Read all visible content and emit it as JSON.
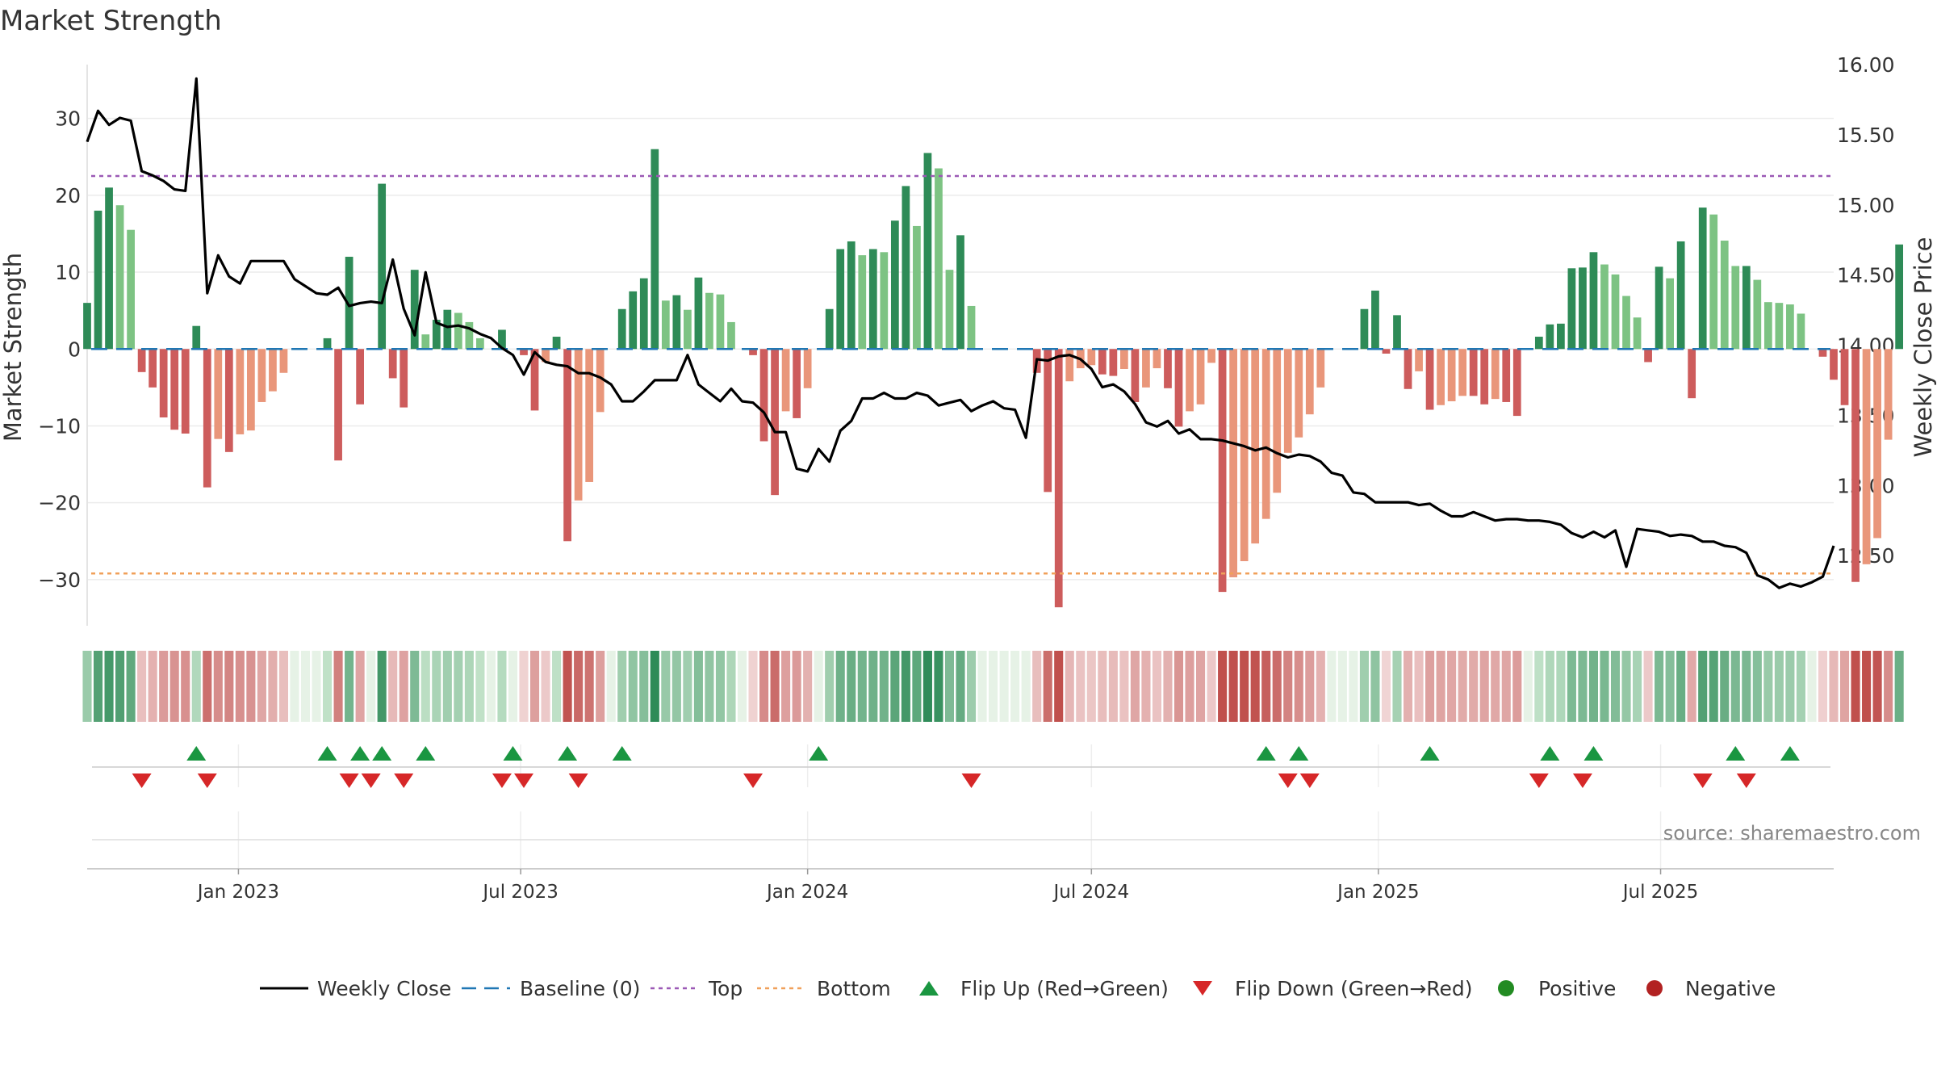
{
  "colors": {
    "up_dark": "#2e8b57",
    "up_light": "#7dc383",
    "down_dark": "#cd5c5c",
    "down_light": "#e9967a",
    "line": "#000000",
    "baseline": "#1f77b4",
    "top": "#9b59b6",
    "bottom": "#f0a05a",
    "flip_up": "#1a9641",
    "flip_down": "#d62728",
    "positive": "#228b22",
    "negative": "#b22222",
    "grid": "#ececec",
    "source": "#888888"
  },
  "chart_data": {
    "type": "bar",
    "title": "Market Strength",
    "ylabel_left": "Market Strength",
    "ylabel_right": "Weekly Close Price",
    "source": "source: sharemaestro.com",
    "ylim_left": [
      -36,
      37
    ],
    "ylim_right": [
      12.0,
      16.0
    ],
    "yticks_left": [
      30,
      20,
      10,
      0,
      -10,
      -20,
      -30
    ],
    "yticks_left_labels": [
      "30",
      "20",
      "10",
      "0",
      "−10",
      "−20",
      "−30"
    ],
    "yticks_right": [
      "16.00",
      "15.50",
      "15.00",
      "14.50",
      "14.00",
      "13.50",
      "13.00",
      "12.50"
    ],
    "x_start": "2022-09-26",
    "x_end": "2025-10-20",
    "xticks": [
      {
        "date": "2023-01-01",
        "label": "Jan 2023"
      },
      {
        "date": "2023-07-01",
        "label": "Jul 2023"
      },
      {
        "date": "2024-01-01",
        "label": "Jan 2024"
      },
      {
        "date": "2024-07-01",
        "label": "Jul 2024"
      },
      {
        "date": "2025-01-01",
        "label": "Jan 2025"
      },
      {
        "date": "2025-07-01",
        "label": "Jul 2025"
      }
    ],
    "top_threshold": 22.5,
    "bottom_threshold": -29.2,
    "baseline": 0,
    "series": [
      {
        "name": "Market Strength",
        "x_first": "2022-09-26",
        "interval_days": 7,
        "values": [
          6,
          18,
          21,
          18.7,
          15.5,
          -3,
          -5,
          -8.9,
          -10.5,
          -11,
          3,
          -18,
          -11.7,
          -13.4,
          -11.1,
          -10.6,
          -6.9,
          -5.5,
          -3.1,
          0,
          0,
          0,
          1.4,
          -14.5,
          12,
          -7.2,
          0,
          21.5,
          -3.8,
          -7.6,
          10.3,
          1.9,
          3.8,
          5.1,
          4.7,
          3.5,
          1.4,
          0,
          2.5,
          0,
          -0.8,
          -8,
          -1.7,
          1.6,
          -25,
          -19.7,
          -17.3,
          -8.2,
          0,
          5.2,
          7.5,
          9.2,
          26,
          6.3,
          7,
          5.1,
          9.3,
          7.3,
          7.1,
          3.5,
          0,
          -0.8,
          -12,
          -19,
          -8.1,
          -9,
          -5.1,
          0,
          5.2,
          13,
          14,
          12.2,
          13,
          12.6,
          16.7,
          21.2,
          16,
          25.5,
          23.5,
          10.3,
          14.8,
          5.6,
          0,
          0,
          0,
          0,
          0,
          -3.1,
          -18.6,
          -33.6,
          -4.2,
          -2.5,
          -2.1,
          -3.3,
          -3.5,
          -2.6,
          -6.9,
          -5,
          -2.5,
          -5.1,
          -10.1,
          -8.1,
          -7.2,
          -1.8,
          -31.6,
          -29.7,
          -27.6,
          -25.3,
          -22.1,
          -18.7,
          -13.5,
          -11.5,
          -8.5,
          -5,
          0,
          0,
          0,
          5.2,
          7.6,
          -0.6,
          4.4,
          -5.2,
          -2.9,
          -7.9,
          -7.3,
          -6.8,
          -6.1,
          -6.1,
          -7.2,
          -6.5,
          -6.9,
          -8.7,
          0,
          1.6,
          3.2,
          3.3,
          10.5,
          10.6,
          12.6,
          11,
          9.7,
          6.9,
          4.1,
          -1.7,
          10.7,
          9.2,
          14,
          -6.4,
          18.4,
          17.5,
          14.1,
          10.8,
          10.8,
          9,
          6.1,
          6,
          5.8,
          4.6,
          0,
          -1,
          -4,
          -7.3,
          -30.3,
          -28,
          -24.6,
          -11.8,
          13.6
        ],
        "weekly_close": [
          15.45,
          15.67,
          15.57,
          15.62,
          15.6,
          15.24,
          15.21,
          15.17,
          15.11,
          15.1,
          15.9,
          14.37,
          14.64,
          14.49,
          14.44,
          14.6,
          14.6,
          14.6,
          14.6,
          14.47,
          14.42,
          14.37,
          14.36,
          14.41,
          14.28,
          14.3,
          14.31,
          14.3,
          14.61,
          14.26,
          14.07,
          14.52,
          14.16,
          14.13,
          14.14,
          14.12,
          14.08,
          14.05,
          13.98,
          13.93,
          13.79,
          13.95,
          13.88,
          13.86,
          13.85,
          13.8,
          13.8,
          13.77,
          13.72,
          13.6,
          13.6,
          13.67,
          13.75,
          13.75,
          13.75,
          13.93,
          13.72,
          13.66,
          13.6,
          13.69,
          13.6,
          13.59,
          13.52,
          13.38,
          13.38,
          13.12,
          13.1,
          13.26,
          13.17,
          13.39,
          13.46,
          13.62,
          13.62,
          13.66,
          13.62,
          13.62,
          13.66,
          13.64,
          13.57,
          13.59,
          13.61,
          13.53,
          13.57,
          13.6,
          13.55,
          13.54,
          13.34,
          13.9,
          13.89,
          13.92,
          13.93,
          13.9,
          13.83,
          13.7,
          13.72,
          13.67,
          13.58,
          13.45,
          13.42,
          13.46,
          13.37,
          13.4,
          13.33,
          13.33,
          13.32,
          13.3,
          13.28,
          13.25,
          13.27,
          13.23,
          13.2,
          13.22,
          13.21,
          13.17,
          13.09,
          13.07,
          12.95,
          12.94,
          12.88,
          12.88,
          12.88,
          12.88,
          12.86,
          12.87,
          12.82,
          12.78,
          12.78,
          12.81,
          12.78,
          12.75,
          12.76,
          12.76,
          12.75,
          12.75,
          12.74,
          12.72,
          12.66,
          12.63,
          12.67,
          12.63,
          12.68,
          12.42,
          12.69,
          12.68,
          12.67,
          12.64,
          12.65,
          12.64,
          12.6,
          12.6,
          12.57,
          12.56,
          12.52,
          12.36,
          12.33,
          12.27,
          12.3,
          12.28,
          12.31,
          12.35,
          12.57
        ]
      }
    ],
    "flip_up_indices": [
      10,
      22,
      25,
      27,
      31,
      39,
      44,
      49,
      67,
      108,
      111,
      123,
      134,
      138,
      151,
      156
    ],
    "flip_down_indices": [
      5,
      11,
      24,
      26,
      29,
      38,
      40,
      45,
      61,
      81,
      110,
      112,
      133,
      137,
      148,
      152
    ],
    "legend": [
      "Weekly Close",
      "Baseline (0)",
      "Top",
      "Bottom",
      "Flip Up (Red→Green)",
      "Flip Down (Green→Red)",
      "Positive",
      "Negative"
    ]
  }
}
